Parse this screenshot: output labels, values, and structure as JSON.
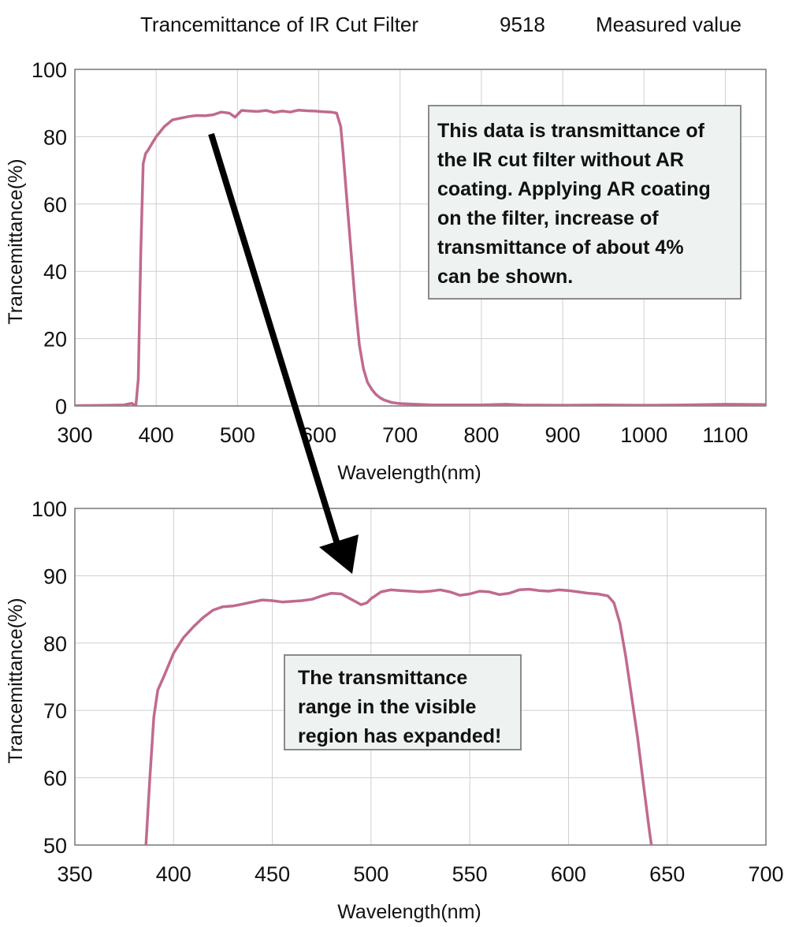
{
  "header": {
    "title": "Trancemittance of IR Cut Filter",
    "model": "9518",
    "label": "Measured value"
  },
  "colors": {
    "curve": "#c06a8e",
    "grid": "#cfcfcf",
    "axis": "#777777",
    "note_bg": "#eef2f1",
    "arrow": "#000000"
  },
  "notes": {
    "top": "This data is transmittance of\nthe IR cut filter without AR\ncoating. Applying AR coating\non the filter, increase of\ntransmittance of about 4%\ncan be shown.",
    "bottom": "The transmittance\nrange in the visible\nregion has expanded!"
  },
  "chart_data": [
    {
      "type": "line",
      "xlabel": "Wavelength(nm)",
      "ylabel": "Trancemittance(%)",
      "xlim": [
        300,
        1150
      ],
      "ylim": [
        0,
        100
      ],
      "xticks": [
        300,
        400,
        500,
        600,
        700,
        800,
        900,
        1000,
        1100
      ],
      "yticks": [
        0,
        20,
        40,
        60,
        80,
        100
      ],
      "grid": true,
      "series": [
        {
          "x": [
            300,
            340,
            360,
            370,
            375,
            378,
            381,
            384,
            387,
            390,
            395,
            400,
            410,
            420,
            430,
            440,
            450,
            460,
            470,
            480,
            490,
            497,
            505,
            515,
            525,
            535,
            545,
            555,
            565,
            575,
            585,
            595,
            605,
            615,
            622,
            627,
            630,
            635,
            640,
            645,
            650,
            655,
            660,
            665,
            670,
            675,
            680,
            690,
            700,
            720,
            740,
            760,
            800,
            830,
            850,
            900,
            950,
            1000,
            1050,
            1100,
            1150
          ],
          "y": [
            0.1,
            0.2,
            0.3,
            0.8,
            0,
            8,
            45,
            72,
            75,
            76,
            78,
            80,
            83,
            85,
            85.5,
            86,
            86.3,
            86.2,
            86.5,
            87.3,
            87,
            85.8,
            87.8,
            87.6,
            87.5,
            87.8,
            87.2,
            87.6,
            87.3,
            87.9,
            87.7,
            87.6,
            87.4,
            87.3,
            87,
            83,
            75,
            60,
            45,
            30,
            18,
            11,
            7,
            5,
            3.5,
            2.5,
            1.8,
            1,
            0.7,
            0.5,
            0.3,
            0.3,
            0.3,
            0.5,
            0.3,
            0.2,
            0.3,
            0.2,
            0.3,
            0.5,
            0.4
          ]
        }
      ]
    },
    {
      "type": "line",
      "xlabel": "Wavelength(nm)",
      "ylabel": "Trancemittance(%)",
      "xlim": [
        350,
        700
      ],
      "ylim": [
        50,
        100
      ],
      "xticks": [
        350,
        400,
        450,
        500,
        550,
        600,
        650,
        700
      ],
      "yticks": [
        50,
        60,
        70,
        80,
        90,
        100
      ],
      "grid": true,
      "series": [
        {
          "x": [
            386,
            388,
            390,
            392,
            395,
            400,
            405,
            410,
            415,
            420,
            425,
            430,
            435,
            440,
            445,
            450,
            455,
            460,
            465,
            470,
            475,
            480,
            485,
            490,
            495,
            498,
            500,
            505,
            510,
            515,
            520,
            525,
            530,
            535,
            540,
            545,
            550,
            555,
            560,
            565,
            570,
            575,
            580,
            585,
            590,
            595,
            600,
            605,
            610,
            615,
            620,
            623,
            626,
            629,
            632,
            635,
            638,
            641,
            642
          ],
          "y": [
            50,
            60,
            69,
            73,
            75,
            78.5,
            80.8,
            82.4,
            83.8,
            84.9,
            85.4,
            85.5,
            85.8,
            86.1,
            86.4,
            86.3,
            86.1,
            86.2,
            86.3,
            86.5,
            87,
            87.4,
            87.3,
            86.5,
            85.7,
            86,
            86.6,
            87.6,
            87.9,
            87.8,
            87.7,
            87.6,
            87.7,
            87.9,
            87.6,
            87.1,
            87.3,
            87.7,
            87.6,
            87.2,
            87.4,
            87.9,
            88,
            87.8,
            87.7,
            87.9,
            87.8,
            87.6,
            87.4,
            87.3,
            87,
            86,
            83,
            78,
            72,
            66,
            59,
            52,
            50
          ]
        }
      ]
    }
  ]
}
